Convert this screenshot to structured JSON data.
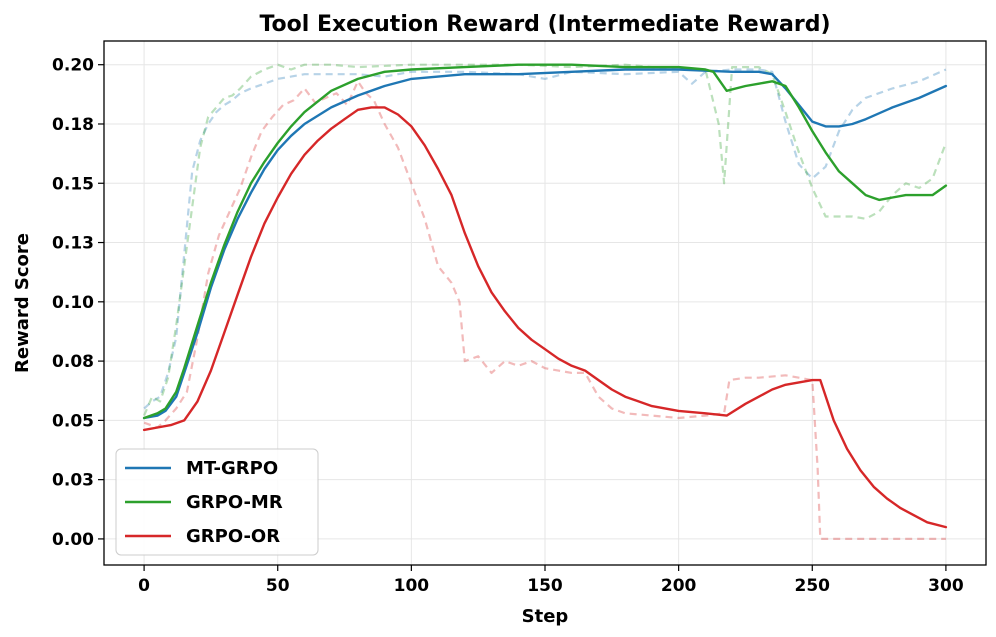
{
  "chart_data": {
    "type": "line",
    "title": "Tool Execution Reward (Intermediate Reward)",
    "xlabel": "Step",
    "ylabel": "Reward Score",
    "xlim": [
      -15,
      315
    ],
    "ylim": [
      -0.011,
      0.21
    ],
    "xticks": [
      0,
      50,
      100,
      150,
      200,
      250,
      300
    ],
    "xtick_labels": [
      "0",
      "50",
      "100",
      "150",
      "200",
      "250",
      "300"
    ],
    "yticks": [
      0.0,
      0.025,
      0.05,
      0.075,
      0.1,
      0.125,
      0.15,
      0.175,
      0.2
    ],
    "ytick_labels": [
      "0.00",
      "0.03",
      "0.05",
      "0.08",
      "0.10",
      "0.13",
      "0.15",
      "0.18",
      "0.20"
    ],
    "grid": true,
    "legend_position": "bottom-left",
    "series": [
      {
        "name": "MT-GRPO",
        "color": "#1f77b4",
        "smoothed": {
          "x": [
            0,
            5,
            8,
            12,
            15,
            20,
            25,
            30,
            35,
            40,
            45,
            50,
            55,
            60,
            70,
            80,
            90,
            100,
            110,
            120,
            140,
            160,
            180,
            200,
            220,
            230,
            235,
            240,
            245,
            250,
            255,
            260,
            265,
            270,
            280,
            290,
            300
          ],
          "y": [
            0.051,
            0.052,
            0.054,
            0.06,
            0.07,
            0.087,
            0.106,
            0.122,
            0.135,
            0.146,
            0.156,
            0.164,
            0.17,
            0.175,
            0.182,
            0.187,
            0.191,
            0.194,
            0.195,
            0.196,
            0.196,
            0.197,
            0.198,
            0.198,
            0.197,
            0.197,
            0.196,
            0.19,
            0.183,
            0.176,
            0.174,
            0.174,
            0.175,
            0.177,
            0.182,
            0.186,
            0.191
          ]
        },
        "raw": {
          "x": [
            0,
            3,
            6,
            9,
            12,
            15,
            18,
            21,
            24,
            27,
            30,
            33,
            36,
            40,
            45,
            50,
            55,
            60,
            70,
            80,
            90,
            100,
            120,
            140,
            150,
            160,
            180,
            200,
            205,
            210,
            220,
            230,
            235,
            240,
            245,
            250,
            255,
            260,
            265,
            270,
            280,
            290,
            300
          ],
          "y": [
            0.055,
            0.058,
            0.06,
            0.07,
            0.085,
            0.12,
            0.155,
            0.168,
            0.175,
            0.18,
            0.183,
            0.185,
            0.188,
            0.19,
            0.192,
            0.194,
            0.195,
            0.196,
            0.196,
            0.196,
            0.195,
            0.197,
            0.197,
            0.196,
            0.194,
            0.197,
            0.196,
            0.197,
            0.192,
            0.197,
            0.198,
            0.198,
            0.197,
            0.176,
            0.158,
            0.152,
            0.157,
            0.172,
            0.181,
            0.186,
            0.19,
            0.193,
            0.198
          ]
        }
      },
      {
        "name": "GRPO-MR",
        "color": "#2ca02c",
        "smoothed": {
          "x": [
            0,
            5,
            8,
            12,
            15,
            20,
            25,
            30,
            35,
            40,
            45,
            50,
            55,
            60,
            70,
            80,
            90,
            100,
            120,
            140,
            160,
            180,
            200,
            210,
            213,
            218,
            225,
            230,
            235,
            240,
            245,
            250,
            255,
            260,
            265,
            270,
            275,
            280,
            285,
            290,
            295,
            300
          ],
          "y": [
            0.051,
            0.053,
            0.055,
            0.062,
            0.072,
            0.09,
            0.108,
            0.124,
            0.138,
            0.15,
            0.159,
            0.167,
            0.174,
            0.18,
            0.189,
            0.194,
            0.197,
            0.198,
            0.199,
            0.2,
            0.2,
            0.199,
            0.199,
            0.198,
            0.197,
            0.189,
            0.191,
            0.192,
            0.193,
            0.191,
            0.182,
            0.172,
            0.163,
            0.155,
            0.15,
            0.145,
            0.143,
            0.144,
            0.145,
            0.145,
            0.145,
            0.149
          ]
        },
        "raw": {
          "x": [
            0,
            3,
            6,
            9,
            12,
            15,
            18,
            21,
            24,
            27,
            30,
            33,
            36,
            40,
            45,
            50,
            55,
            60,
            70,
            80,
            100,
            120,
            140,
            160,
            180,
            200,
            210,
            215,
            217,
            220,
            225,
            230,
            235,
            240,
            245,
            250,
            255,
            260,
            265,
            270,
            275,
            280,
            285,
            290,
            295,
            300
          ],
          "y": [
            0.052,
            0.06,
            0.058,
            0.068,
            0.09,
            0.115,
            0.14,
            0.165,
            0.178,
            0.182,
            0.186,
            0.187,
            0.19,
            0.195,
            0.198,
            0.2,
            0.198,
            0.2,
            0.2,
            0.199,
            0.2,
            0.2,
            0.2,
            0.199,
            0.2,
            0.198,
            0.198,
            0.175,
            0.15,
            0.199,
            0.199,
            0.199,
            0.196,
            0.18,
            0.163,
            0.148,
            0.136,
            0.136,
            0.136,
            0.135,
            0.138,
            0.145,
            0.15,
            0.148,
            0.152,
            0.167
          ]
        }
      },
      {
        "name": "GRPO-OR",
        "color": "#d62728",
        "smoothed": {
          "x": [
            0,
            5,
            10,
            15,
            20,
            25,
            30,
            35,
            40,
            45,
            50,
            55,
            60,
            65,
            70,
            75,
            80,
            85,
            90,
            95,
            100,
            105,
            110,
            115,
            120,
            125,
            130,
            135,
            140,
            145,
            150,
            155,
            160,
            165,
            170,
            175,
            180,
            190,
            200,
            210,
            218,
            225,
            230,
            235,
            240,
            245,
            250,
            253,
            258,
            263,
            268,
            273,
            278,
            283,
            288,
            293,
            300
          ],
          "y": [
            0.046,
            0.047,
            0.048,
            0.05,
            0.058,
            0.071,
            0.087,
            0.103,
            0.119,
            0.133,
            0.144,
            0.154,
            0.162,
            0.168,
            0.173,
            0.177,
            0.181,
            0.182,
            0.182,
            0.179,
            0.174,
            0.166,
            0.156,
            0.145,
            0.129,
            0.115,
            0.104,
            0.096,
            0.089,
            0.084,
            0.08,
            0.076,
            0.073,
            0.071,
            0.067,
            0.063,
            0.06,
            0.056,
            0.054,
            0.053,
            0.052,
            0.057,
            0.06,
            0.063,
            0.065,
            0.066,
            0.067,
            0.067,
            0.05,
            0.038,
            0.029,
            0.022,
            0.017,
            0.013,
            0.01,
            0.007,
            0.005
          ]
        },
        "raw": {
          "x": [
            0,
            5,
            8,
            12,
            16,
            20,
            24,
            28,
            32,
            36,
            40,
            44,
            48,
            52,
            56,
            60,
            64,
            68,
            72,
            76,
            80,
            83,
            86,
            90,
            95,
            100,
            105,
            110,
            115,
            118,
            120,
            125,
            130,
            135,
            140,
            145,
            150,
            155,
            160,
            165,
            170,
            175,
            180,
            190,
            200,
            210,
            217,
            219,
            225,
            230,
            240,
            245,
            250,
            252,
            253,
            260,
            270,
            280,
            290,
            300
          ],
          "y": [
            0.049,
            0.047,
            0.05,
            0.055,
            0.062,
            0.085,
            0.112,
            0.128,
            0.138,
            0.148,
            0.161,
            0.172,
            0.178,
            0.183,
            0.185,
            0.19,
            0.184,
            0.186,
            0.188,
            0.183,
            0.193,
            0.188,
            0.185,
            0.175,
            0.165,
            0.15,
            0.135,
            0.115,
            0.108,
            0.1,
            0.075,
            0.077,
            0.07,
            0.075,
            0.073,
            0.075,
            0.072,
            0.071,
            0.07,
            0.07,
            0.06,
            0.055,
            0.053,
            0.052,
            0.051,
            0.052,
            0.053,
            0.067,
            0.068,
            0.068,
            0.069,
            0.068,
            0.067,
            0.03,
            0.0,
            0.0,
            0.0,
            0.0,
            0.0,
            0.0
          ]
        }
      }
    ]
  }
}
